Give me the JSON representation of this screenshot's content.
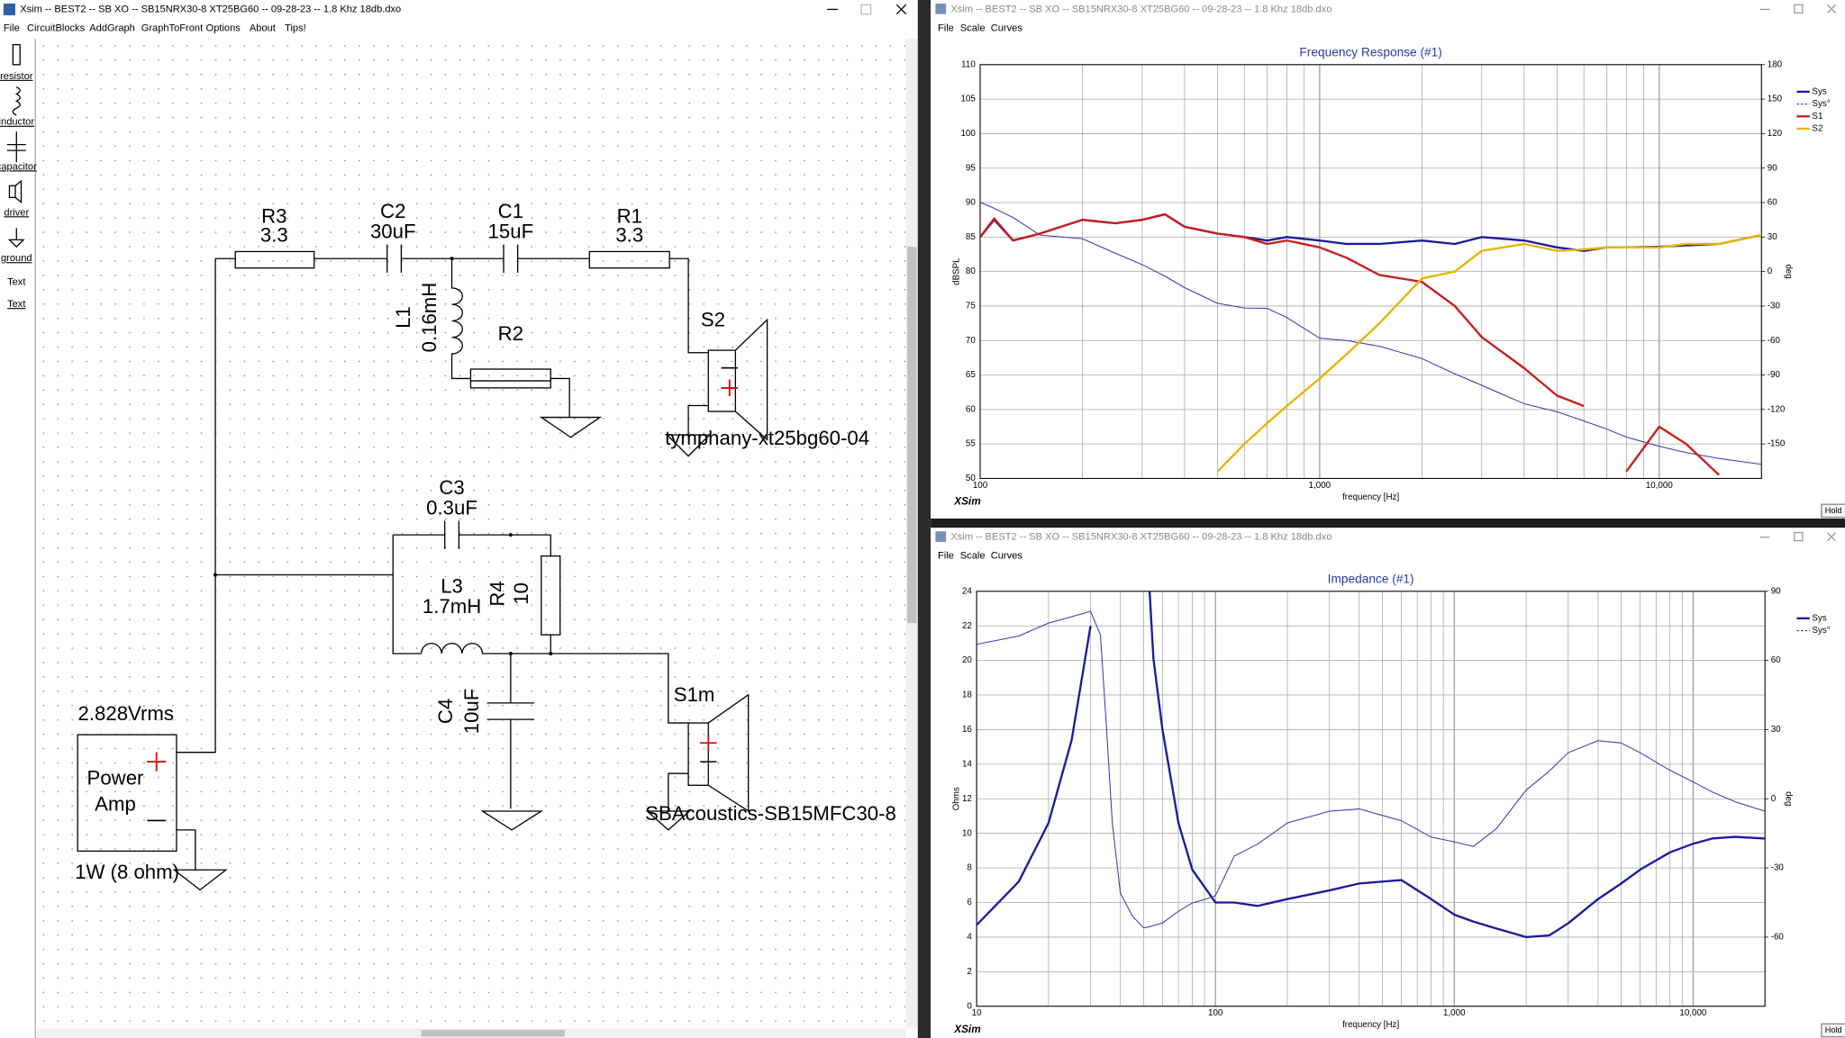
{
  "windows": [
    {
      "title": "Xsim -- BEST2 -- SB XO -- SB15NRX30-8 XT25BG60 -- 09-28-23 -- 1.8 Khz 18db.dxo",
      "menu": [
        "File",
        "CircuitBlocks",
        "AddGraph",
        "GraphToFront",
        "Options",
        "About",
        "Tips!"
      ],
      "toolbar": [
        "resistor",
        "inductor",
        "capacitor",
        "driver",
        "ground",
        "Text",
        "Text"
      ]
    },
    {
      "title": "Xsim -- BEST2 -- SB XO -- SB15NRX30-8 XT25BG60 -- 09-28-23 -- 1.8 Khz 18db.dxo",
      "menu": [
        "File",
        "Scale",
        "Curves"
      ],
      "logo": "XSim",
      "button": "Hold"
    },
    {
      "title": "Xsim -- BEST2 -- SB XO -- SB15NRX30-8 XT25BG60 -- 09-28-23 -- 1.8 Khz 18db.dxo",
      "menu": [
        "File",
        "Scale",
        "Curves"
      ],
      "logo": "XSim",
      "button": "Hold"
    }
  ],
  "schematic": {
    "components": [
      {
        "name": "R3",
        "value": "3.3"
      },
      {
        "name": "C2",
        "value": "30uF"
      },
      {
        "name": "C1",
        "value": "15uF"
      },
      {
        "name": "R1",
        "value": "3.3"
      },
      {
        "name": "L1",
        "value": "0.16mH"
      },
      {
        "name": "R2"
      },
      {
        "name": "C3",
        "value": "0.3uF"
      },
      {
        "name": "L3",
        "value": "1.7mH"
      },
      {
        "name": "R4",
        "value": "10"
      },
      {
        "name": "C4",
        "value": "10uF"
      }
    ],
    "drivers": [
      {
        "name": "S2",
        "model": "tymphany-xt25bg60-04"
      },
      {
        "name": "S1m",
        "model": "SBAcoustics-SB15MFC30-8"
      }
    ],
    "source": {
      "voltage": "2.828Vrms",
      "label_lines": [
        "Power",
        "Amp"
      ],
      "rating": "1W (8 ohm)"
    }
  },
  "chart_data": [
    {
      "type": "line",
      "title": "Frequency Response (#1)",
      "x_label": "frequency [Hz]",
      "y_label": "dBSPL",
      "y2_label": "deg",
      "xscale": "log",
      "grid": true,
      "legend": "right",
      "xlim": [
        100,
        20000
      ],
      "xticks": [
        100,
        {
          "value": 1000,
          "label": "1,000"
        },
        {
          "value": 10000,
          "label": "10,000"
        }
      ],
      "xminorticks": [
        200,
        300,
        400,
        500,
        600,
        700,
        800,
        900,
        2000,
        3000,
        4000,
        5000,
        6000,
        7000,
        8000,
        9000,
        20000
      ],
      "ylim": [
        50,
        110
      ],
      "yticks": [
        50,
        55,
        60,
        65,
        70,
        75,
        80,
        85,
        90,
        95,
        100,
        105,
        110
      ],
      "y2lim": [
        -180,
        180
      ],
      "y2ticks": [
        -150,
        -120,
        -90,
        -60,
        -30,
        0,
        30,
        60,
        90,
        120,
        150,
        180
      ],
      "x": [
        100,
        110,
        125,
        150,
        200,
        250,
        300,
        350,
        400,
        500,
        600,
        700,
        800,
        1000,
        1200,
        1500,
        2000,
        2500,
        3000,
        4000,
        5000,
        6000,
        7000,
        8000,
        10000,
        12000,
        15000,
        20000
      ],
      "series": [
        {
          "name": "Sys",
          "color": "#1c1c9c",
          "values": [
            85,
            87.5,
            84.5,
            85.5,
            87.5,
            87,
            87.5,
            88.3,
            86.5,
            85.5,
            85,
            84.5,
            85,
            84.5,
            84,
            84,
            84.5,
            84,
            85,
            84.5,
            83.5,
            83,
            83.5,
            83.5,
            83.6,
            83.8,
            84,
            85.3
          ]
        },
        {
          "name": "Sys°",
          "color": "#3a3aaa",
          "axis": "y2",
          "values": [
            60.3,
            55,
            47,
            31.7,
            28.6,
            16,
            6,
            -4,
            -14,
            -27.6,
            -31.7,
            -32,
            -40,
            -58,
            -60,
            -65,
            -75.7,
            -89,
            -99,
            -115,
            -122,
            -130,
            -137,
            -144,
            -152,
            -157.5,
            -162.6,
            -167.7
          ]
        },
        {
          "name": "S1",
          "color": "#c81e1e",
          "values": [
            85,
            87.7,
            84.5,
            85.5,
            87.5,
            87,
            87.5,
            88.3,
            86.5,
            85.5,
            85,
            84,
            84.5,
            83.5,
            82,
            79.5,
            78.5,
            75,
            70.5,
            66,
            62,
            60.5,
            null,
            51,
            57.5,
            55,
            50.5,
            null
          ]
        },
        {
          "name": "S2",
          "color": "#e8b400",
          "values": [
            null,
            null,
            null,
            null,
            null,
            null,
            null,
            null,
            null,
            51,
            55,
            58,
            60.5,
            64.5,
            68,
            72.5,
            79,
            80,
            83,
            84,
            83,
            83.2,
            83.5,
            83.5,
            83.5,
            84,
            84,
            85.3
          ]
        }
      ]
    },
    {
      "type": "line",
      "title": "Impedance (#1)",
      "x_label": "frequency [Hz]",
      "y_label": "Ohms",
      "y2_label": "deg",
      "xscale": "log",
      "grid": true,
      "legend": "right",
      "xlim": [
        10,
        20000
      ],
      "xticks": [
        10,
        100,
        {
          "value": 1000,
          "label": "1,000"
        },
        {
          "value": 10000,
          "label": "10,000"
        }
      ],
      "xminorticks": [
        20,
        30,
        40,
        50,
        60,
        70,
        80,
        90,
        200,
        300,
        400,
        500,
        600,
        700,
        800,
        900,
        2000,
        3000,
        4000,
        5000,
        6000,
        7000,
        8000,
        9000,
        20000
      ],
      "ylim": [
        0,
        24
      ],
      "yticks": [
        0,
        2,
        4,
        6,
        8,
        10,
        12,
        14,
        16,
        18,
        20,
        22,
        24
      ],
      "y2lim": [
        -90,
        90
      ],
      "y2ticks": [
        -60,
        -30,
        0,
        30,
        60,
        90
      ],
      "x": [
        10,
        15,
        20,
        25,
        30,
        33,
        35,
        37,
        40,
        45,
        50,
        53,
        55,
        60,
        70,
        80,
        90,
        100,
        120,
        150,
        200,
        300,
        400,
        600,
        800,
        1000,
        1200,
        1500,
        2000,
        2500,
        3000,
        4000,
        5000,
        6000,
        8000,
        10000,
        12000,
        15000,
        20000
      ],
      "series": [
        {
          "name": "Sys",
          "color": "#1c1c9c",
          "values": [
            4.7,
            7.2,
            10.6,
            15.4,
            22,
            null,
            null,
            null,
            null,
            null,
            null,
            24,
            20.1,
            16,
            10.6,
            7.9,
            6.9,
            6,
            6,
            5.8,
            6.2,
            6.7,
            7.1,
            7.3,
            6.2,
            5.3,
            4.9,
            4.5,
            4,
            4.1,
            4.8,
            6.2,
            7.1,
            7.9,
            8.9,
            9.4,
            9.7,
            9.8,
            9.7
          ]
        },
        {
          "name": "Sys°",
          "color": "#3a3aaa",
          "axis": "y2",
          "values": [
            67,
            70.6,
            76.2,
            79,
            81.3,
            71,
            30.3,
            -10.5,
            -41,
            -51,
            -56,
            -55.5,
            -55,
            -53.9,
            -48.8,
            -45.2,
            -43.7,
            -42,
            -24.8,
            -19.7,
            -10.5,
            -5.4,
            -4.4,
            -9.5,
            -16.6,
            -18.7,
            -20.7,
            -13,
            3.8,
            12,
            20,
            25.2,
            24.2,
            20,
            12.4,
            7.3,
            3,
            -1.3,
            -5.4
          ]
        }
      ]
    }
  ]
}
